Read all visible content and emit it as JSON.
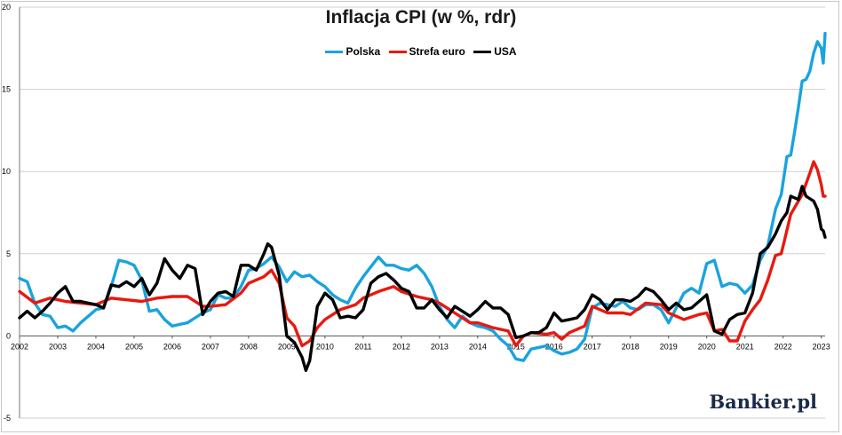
{
  "chart_data": {
    "type": "line",
    "title": "Inflacja CPI (w %, rdr)",
    "xlabel": "",
    "ylabel": "",
    "ylim": [
      -5,
      20
    ],
    "yticks": [
      -5,
      0,
      5,
      10,
      15,
      20
    ],
    "x_range": [
      2002,
      2023.1
    ],
    "xticks": [
      "2002",
      "2003",
      "2004",
      "2005",
      "2006",
      "2007",
      "2008",
      "2009",
      "2010",
      "2011",
      "2012",
      "2013",
      "2014",
      "2015",
      "2016",
      "2017",
      "2018",
      "2019",
      "2020",
      "2021",
      "2022",
      "2023"
    ],
    "grid": "horizontal",
    "legend_position": "top-center",
    "series": [
      {
        "name": "Polska",
        "color": "#1aa3dd",
        "points": [
          [
            2002.0,
            3.5
          ],
          [
            2002.2,
            3.3
          ],
          [
            2002.4,
            2.0
          ],
          [
            2002.6,
            1.3
          ],
          [
            2002.8,
            1.2
          ],
          [
            2003.0,
            0.5
          ],
          [
            2003.2,
            0.6
          ],
          [
            2003.4,
            0.3
          ],
          [
            2003.6,
            0.8
          ],
          [
            2003.8,
            1.2
          ],
          [
            2004.0,
            1.6
          ],
          [
            2004.2,
            1.7
          ],
          [
            2004.4,
            3.0
          ],
          [
            2004.6,
            4.6
          ],
          [
            2004.8,
            4.5
          ],
          [
            2005.0,
            4.3
          ],
          [
            2005.2,
            3.4
          ],
          [
            2005.4,
            1.5
          ],
          [
            2005.6,
            1.6
          ],
          [
            2005.8,
            1.0
          ],
          [
            2006.0,
            0.6
          ],
          [
            2006.2,
            0.7
          ],
          [
            2006.4,
            0.8
          ],
          [
            2006.6,
            1.1
          ],
          [
            2006.8,
            1.4
          ],
          [
            2007.0,
            1.6
          ],
          [
            2007.2,
            2.5
          ],
          [
            2007.4,
            2.3
          ],
          [
            2007.6,
            2.3
          ],
          [
            2007.8,
            3.0
          ],
          [
            2008.0,
            4.0
          ],
          [
            2008.2,
            4.1
          ],
          [
            2008.4,
            4.4
          ],
          [
            2008.6,
            4.8
          ],
          [
            2008.8,
            4.2
          ],
          [
            2009.0,
            3.3
          ],
          [
            2009.2,
            3.9
          ],
          [
            2009.4,
            3.6
          ],
          [
            2009.6,
            3.7
          ],
          [
            2009.8,
            3.3
          ],
          [
            2010.0,
            3.0
          ],
          [
            2010.2,
            2.5
          ],
          [
            2010.4,
            2.2
          ],
          [
            2010.6,
            2.0
          ],
          [
            2010.8,
            2.9
          ],
          [
            2011.0,
            3.6
          ],
          [
            2011.2,
            4.2
          ],
          [
            2011.4,
            4.8
          ],
          [
            2011.6,
            4.3
          ],
          [
            2011.8,
            4.3
          ],
          [
            2012.0,
            4.1
          ],
          [
            2012.2,
            4.0
          ],
          [
            2012.4,
            4.3
          ],
          [
            2012.6,
            3.8
          ],
          [
            2012.8,
            3.0
          ],
          [
            2013.0,
            1.8
          ],
          [
            2013.2,
            1.0
          ],
          [
            2013.4,
            0.5
          ],
          [
            2013.6,
            1.2
          ],
          [
            2013.8,
            0.8
          ],
          [
            2014.0,
            0.6
          ],
          [
            2014.2,
            0.5
          ],
          [
            2014.4,
            0.3
          ],
          [
            2014.6,
            -0.2
          ],
          [
            2014.8,
            -0.6
          ],
          [
            2015.0,
            -1.4
          ],
          [
            2015.2,
            -1.5
          ],
          [
            2015.4,
            -0.8
          ],
          [
            2015.6,
            -0.7
          ],
          [
            2015.8,
            -0.6
          ],
          [
            2016.0,
            -0.9
          ],
          [
            2016.2,
            -1.1
          ],
          [
            2016.4,
            -1.0
          ],
          [
            2016.6,
            -0.8
          ],
          [
            2016.8,
            -0.2
          ],
          [
            2017.0,
            1.7
          ],
          [
            2017.2,
            2.0
          ],
          [
            2017.4,
            1.9
          ],
          [
            2017.6,
            1.8
          ],
          [
            2017.8,
            2.1
          ],
          [
            2018.0,
            1.7
          ],
          [
            2018.2,
            1.6
          ],
          [
            2018.4,
            1.9
          ],
          [
            2018.6,
            1.9
          ],
          [
            2018.8,
            1.6
          ],
          [
            2019.0,
            0.8
          ],
          [
            2019.2,
            1.7
          ],
          [
            2019.4,
            2.6
          ],
          [
            2019.6,
            2.9
          ],
          [
            2019.8,
            2.6
          ],
          [
            2020.0,
            4.4
          ],
          [
            2020.2,
            4.6
          ],
          [
            2020.4,
            3.0
          ],
          [
            2020.6,
            3.2
          ],
          [
            2020.8,
            3.1
          ],
          [
            2021.0,
            2.6
          ],
          [
            2021.2,
            3.1
          ],
          [
            2021.4,
            4.6
          ],
          [
            2021.6,
            5.5
          ],
          [
            2021.8,
            7.7
          ],
          [
            2021.95,
            8.6
          ],
          [
            2022.1,
            10.9
          ],
          [
            2022.2,
            11.0
          ],
          [
            2022.3,
            12.4
          ],
          [
            2022.4,
            13.9
          ],
          [
            2022.5,
            15.5
          ],
          [
            2022.6,
            15.6
          ],
          [
            2022.7,
            16.1
          ],
          [
            2022.8,
            17.2
          ],
          [
            2022.9,
            17.9
          ],
          [
            2023.0,
            17.5
          ],
          [
            2023.05,
            16.6
          ],
          [
            2023.1,
            18.4
          ]
        ]
      },
      {
        "name": "Strefa euro",
        "color": "#e8190f",
        "points": [
          [
            2002.0,
            2.7
          ],
          [
            2002.4,
            2.0
          ],
          [
            2002.8,
            2.3
          ],
          [
            2003.2,
            2.1
          ],
          [
            2003.6,
            2.0
          ],
          [
            2004.0,
            1.9
          ],
          [
            2004.4,
            2.3
          ],
          [
            2004.8,
            2.2
          ],
          [
            2005.2,
            2.1
          ],
          [
            2005.6,
            2.3
          ],
          [
            2006.0,
            2.4
          ],
          [
            2006.4,
            2.4
          ],
          [
            2006.8,
            1.8
          ],
          [
            2007.0,
            1.8
          ],
          [
            2007.4,
            1.9
          ],
          [
            2007.8,
            2.6
          ],
          [
            2008.0,
            3.2
          ],
          [
            2008.4,
            3.6
          ],
          [
            2008.6,
            4.0
          ],
          [
            2008.8,
            3.2
          ],
          [
            2009.0,
            1.1
          ],
          [
            2009.2,
            0.6
          ],
          [
            2009.4,
            -0.6
          ],
          [
            2009.6,
            -0.3
          ],
          [
            2009.8,
            0.5
          ],
          [
            2010.0,
            1.0
          ],
          [
            2010.4,
            1.6
          ],
          [
            2010.8,
            1.9
          ],
          [
            2011.0,
            2.3
          ],
          [
            2011.4,
            2.7
          ],
          [
            2011.8,
            3.0
          ],
          [
            2012.0,
            2.7
          ],
          [
            2012.4,
            2.4
          ],
          [
            2012.8,
            2.2
          ],
          [
            2013.0,
            2.0
          ],
          [
            2013.4,
            1.4
          ],
          [
            2013.8,
            0.8
          ],
          [
            2014.0,
            0.8
          ],
          [
            2014.4,
            0.5
          ],
          [
            2014.8,
            0.3
          ],
          [
            2015.0,
            -0.6
          ],
          [
            2015.2,
            0.0
          ],
          [
            2015.4,
            0.2
          ],
          [
            2015.8,
            0.1
          ],
          [
            2016.0,
            0.2
          ],
          [
            2016.2,
            -0.2
          ],
          [
            2016.4,
            0.2
          ],
          [
            2016.8,
            0.6
          ],
          [
            2017.0,
            1.8
          ],
          [
            2017.4,
            1.4
          ],
          [
            2017.8,
            1.4
          ],
          [
            2018.0,
            1.3
          ],
          [
            2018.4,
            2.0
          ],
          [
            2018.8,
            1.9
          ],
          [
            2019.0,
            1.4
          ],
          [
            2019.4,
            1.0
          ],
          [
            2019.8,
            1.3
          ],
          [
            2020.0,
            1.4
          ],
          [
            2020.2,
            0.3
          ],
          [
            2020.4,
            0.4
          ],
          [
            2020.6,
            -0.3
          ],
          [
            2020.8,
            -0.3
          ],
          [
            2021.0,
            0.9
          ],
          [
            2021.2,
            1.6
          ],
          [
            2021.4,
            2.2
          ],
          [
            2021.6,
            3.4
          ],
          [
            2021.8,
            4.9
          ],
          [
            2021.95,
            5.0
          ],
          [
            2022.2,
            7.4
          ],
          [
            2022.5,
            8.6
          ],
          [
            2022.7,
            9.9
          ],
          [
            2022.8,
            10.6
          ],
          [
            2022.9,
            10.1
          ],
          [
            2023.0,
            9.2
          ],
          [
            2023.05,
            8.5
          ],
          [
            2023.1,
            8.5
          ]
        ]
      },
      {
        "name": "USA",
        "color": "#000000",
        "points": [
          [
            2002.0,
            1.1
          ],
          [
            2002.2,
            1.5
          ],
          [
            2002.4,
            1.1
          ],
          [
            2002.6,
            1.5
          ],
          [
            2002.8,
            2.0
          ],
          [
            2003.0,
            2.6
          ],
          [
            2003.2,
            3.0
          ],
          [
            2003.4,
            2.1
          ],
          [
            2003.6,
            2.1
          ],
          [
            2003.8,
            2.0
          ],
          [
            2004.0,
            1.9
          ],
          [
            2004.2,
            1.7
          ],
          [
            2004.4,
            3.1
          ],
          [
            2004.6,
            3.0
          ],
          [
            2004.8,
            3.3
          ],
          [
            2005.0,
            3.0
          ],
          [
            2005.2,
            3.5
          ],
          [
            2005.4,
            2.5
          ],
          [
            2005.6,
            3.2
          ],
          [
            2005.8,
            4.7
          ],
          [
            2006.0,
            4.0
          ],
          [
            2006.2,
            3.5
          ],
          [
            2006.4,
            4.3
          ],
          [
            2006.6,
            4.1
          ],
          [
            2006.8,
            1.3
          ],
          [
            2007.0,
            2.1
          ],
          [
            2007.2,
            2.6
          ],
          [
            2007.4,
            2.7
          ],
          [
            2007.6,
            2.4
          ],
          [
            2007.8,
            4.3
          ],
          [
            2008.0,
            4.3
          ],
          [
            2008.2,
            4.0
          ],
          [
            2008.4,
            5.0
          ],
          [
            2008.5,
            5.6
          ],
          [
            2008.6,
            5.4
          ],
          [
            2008.8,
            3.7
          ],
          [
            2009.0,
            0.0
          ],
          [
            2009.2,
            -0.4
          ],
          [
            2009.4,
            -1.3
          ],
          [
            2009.5,
            -2.1
          ],
          [
            2009.6,
            -1.5
          ],
          [
            2009.8,
            1.8
          ],
          [
            2010.0,
            2.6
          ],
          [
            2010.2,
            2.2
          ],
          [
            2010.4,
            1.1
          ],
          [
            2010.6,
            1.2
          ],
          [
            2010.8,
            1.1
          ],
          [
            2011.0,
            1.6
          ],
          [
            2011.2,
            3.2
          ],
          [
            2011.4,
            3.6
          ],
          [
            2011.6,
            3.8
          ],
          [
            2011.8,
            3.4
          ],
          [
            2012.0,
            2.9
          ],
          [
            2012.2,
            2.7
          ],
          [
            2012.4,
            1.7
          ],
          [
            2012.6,
            1.7
          ],
          [
            2012.8,
            2.2
          ],
          [
            2013.0,
            1.6
          ],
          [
            2013.2,
            1.1
          ],
          [
            2013.4,
            1.8
          ],
          [
            2013.6,
            1.5
          ],
          [
            2013.8,
            1.2
          ],
          [
            2014.0,
            1.6
          ],
          [
            2014.2,
            2.1
          ],
          [
            2014.4,
            1.7
          ],
          [
            2014.6,
            1.7
          ],
          [
            2014.8,
            1.3
          ],
          [
            2015.0,
            -0.1
          ],
          [
            2015.2,
            0.0
          ],
          [
            2015.4,
            0.2
          ],
          [
            2015.6,
            0.2
          ],
          [
            2015.8,
            0.5
          ],
          [
            2016.0,
            1.4
          ],
          [
            2016.2,
            0.9
          ],
          [
            2016.4,
            1.0
          ],
          [
            2016.6,
            1.1
          ],
          [
            2016.8,
            1.6
          ],
          [
            2017.0,
            2.5
          ],
          [
            2017.2,
            2.2
          ],
          [
            2017.4,
            1.6
          ],
          [
            2017.6,
            2.2
          ],
          [
            2017.8,
            2.2
          ],
          [
            2018.0,
            2.1
          ],
          [
            2018.2,
            2.4
          ],
          [
            2018.4,
            2.9
          ],
          [
            2018.6,
            2.7
          ],
          [
            2018.8,
            2.2
          ],
          [
            2019.0,
            1.6
          ],
          [
            2019.2,
            2.0
          ],
          [
            2019.4,
            1.6
          ],
          [
            2019.6,
            1.7
          ],
          [
            2019.8,
            2.1
          ],
          [
            2020.0,
            2.5
          ],
          [
            2020.2,
            0.3
          ],
          [
            2020.4,
            0.1
          ],
          [
            2020.6,
            1.0
          ],
          [
            2020.8,
            1.3
          ],
          [
            2021.0,
            1.4
          ],
          [
            2021.2,
            2.6
          ],
          [
            2021.4,
            5.0
          ],
          [
            2021.6,
            5.4
          ],
          [
            2021.8,
            6.2
          ],
          [
            2021.95,
            7.0
          ],
          [
            2022.1,
            7.5
          ],
          [
            2022.2,
            8.5
          ],
          [
            2022.4,
            8.3
          ],
          [
            2022.5,
            9.1
          ],
          [
            2022.6,
            8.5
          ],
          [
            2022.8,
            8.2
          ],
          [
            2022.9,
            7.7
          ],
          [
            2023.0,
            6.5
          ],
          [
            2023.05,
            6.4
          ],
          [
            2023.1,
            6.0
          ]
        ]
      }
    ]
  },
  "branding": {
    "logo_text": "Bankier.pl"
  }
}
